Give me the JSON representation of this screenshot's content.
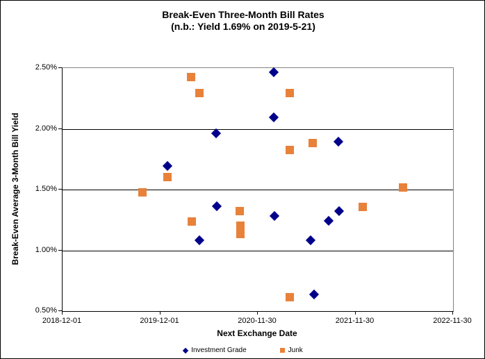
{
  "chart_data": {
    "type": "scatter",
    "title": "Break-Even Three-Month Bill Rates",
    "subtitle": "(n.b.: Yield 1.69% on 2019-5-21)",
    "xlabel": "Next Exchange Date",
    "ylabel": "Break-Even Average 3-Month Bill Yield",
    "x_range": [
      "2018-12-01",
      "2022-11-30"
    ],
    "ylim": [
      0.5,
      2.5
    ],
    "grid": "horizontal",
    "legend_position": "bottom-center",
    "x_ticks": [
      "2018-12-01",
      "2019-12-01",
      "2020-11-30",
      "2021-11-30",
      "2022-11-30"
    ],
    "y_ticks": [
      {
        "value": 2.5,
        "label": "2.50%"
      },
      {
        "value": 2.0,
        "label": "2.00%"
      },
      {
        "value": 1.5,
        "label": "1.50%"
      },
      {
        "value": 1.0,
        "label": "1.00%"
      },
      {
        "value": 0.5,
        "label": "0.50%"
      }
    ],
    "y_gridline_values": [
      2.0,
      1.5,
      1.0
    ],
    "frame_color": "#848484",
    "grid_color": "#000000",
    "series": [
      {
        "name": "Investment Grade",
        "marker": "diamond",
        "color": "#00008B",
        "points": [
          {
            "date": "2019-12-31",
            "value": 1.69
          },
          {
            "date": "2020-04-29",
            "value": 1.08
          },
          {
            "date": "2020-06-30",
            "value": 1.96
          },
          {
            "date": "2020-07-02",
            "value": 1.36
          },
          {
            "date": "2021-01-31",
            "value": 2.46
          },
          {
            "date": "2021-01-31",
            "value": 2.09
          },
          {
            "date": "2021-02-03",
            "value": 1.28
          },
          {
            "date": "2021-06-19",
            "value": 1.08
          },
          {
            "date": "2021-07-01",
            "value": 0.63
          },
          {
            "date": "2021-08-25",
            "value": 1.24
          },
          {
            "date": "2021-10-01",
            "value": 1.89
          },
          {
            "date": "2021-10-02",
            "value": 1.32
          }
        ]
      },
      {
        "name": "Junk",
        "marker": "square",
        "color": "#E8813A",
        "points": [
          {
            "date": "2019-09-29",
            "value": 1.47
          },
          {
            "date": "2019-12-31",
            "value": 1.6
          },
          {
            "date": "2020-03-29",
            "value": 2.42
          },
          {
            "date": "2020-04-01",
            "value": 1.23
          },
          {
            "date": "2020-04-28",
            "value": 2.29
          },
          {
            "date": "2020-09-26",
            "value": 1.32
          },
          {
            "date": "2020-09-29",
            "value": 1.2
          },
          {
            "date": "2020-09-29",
            "value": 1.13
          },
          {
            "date": "2021-03-31",
            "value": 2.29
          },
          {
            "date": "2021-03-31",
            "value": 1.82
          },
          {
            "date": "2021-04-01",
            "value": 0.61
          },
          {
            "date": "2021-06-26",
            "value": 1.88
          },
          {
            "date": "2021-12-31",
            "value": 1.35
          },
          {
            "date": "2022-05-29",
            "value": 1.51
          }
        ]
      }
    ]
  }
}
